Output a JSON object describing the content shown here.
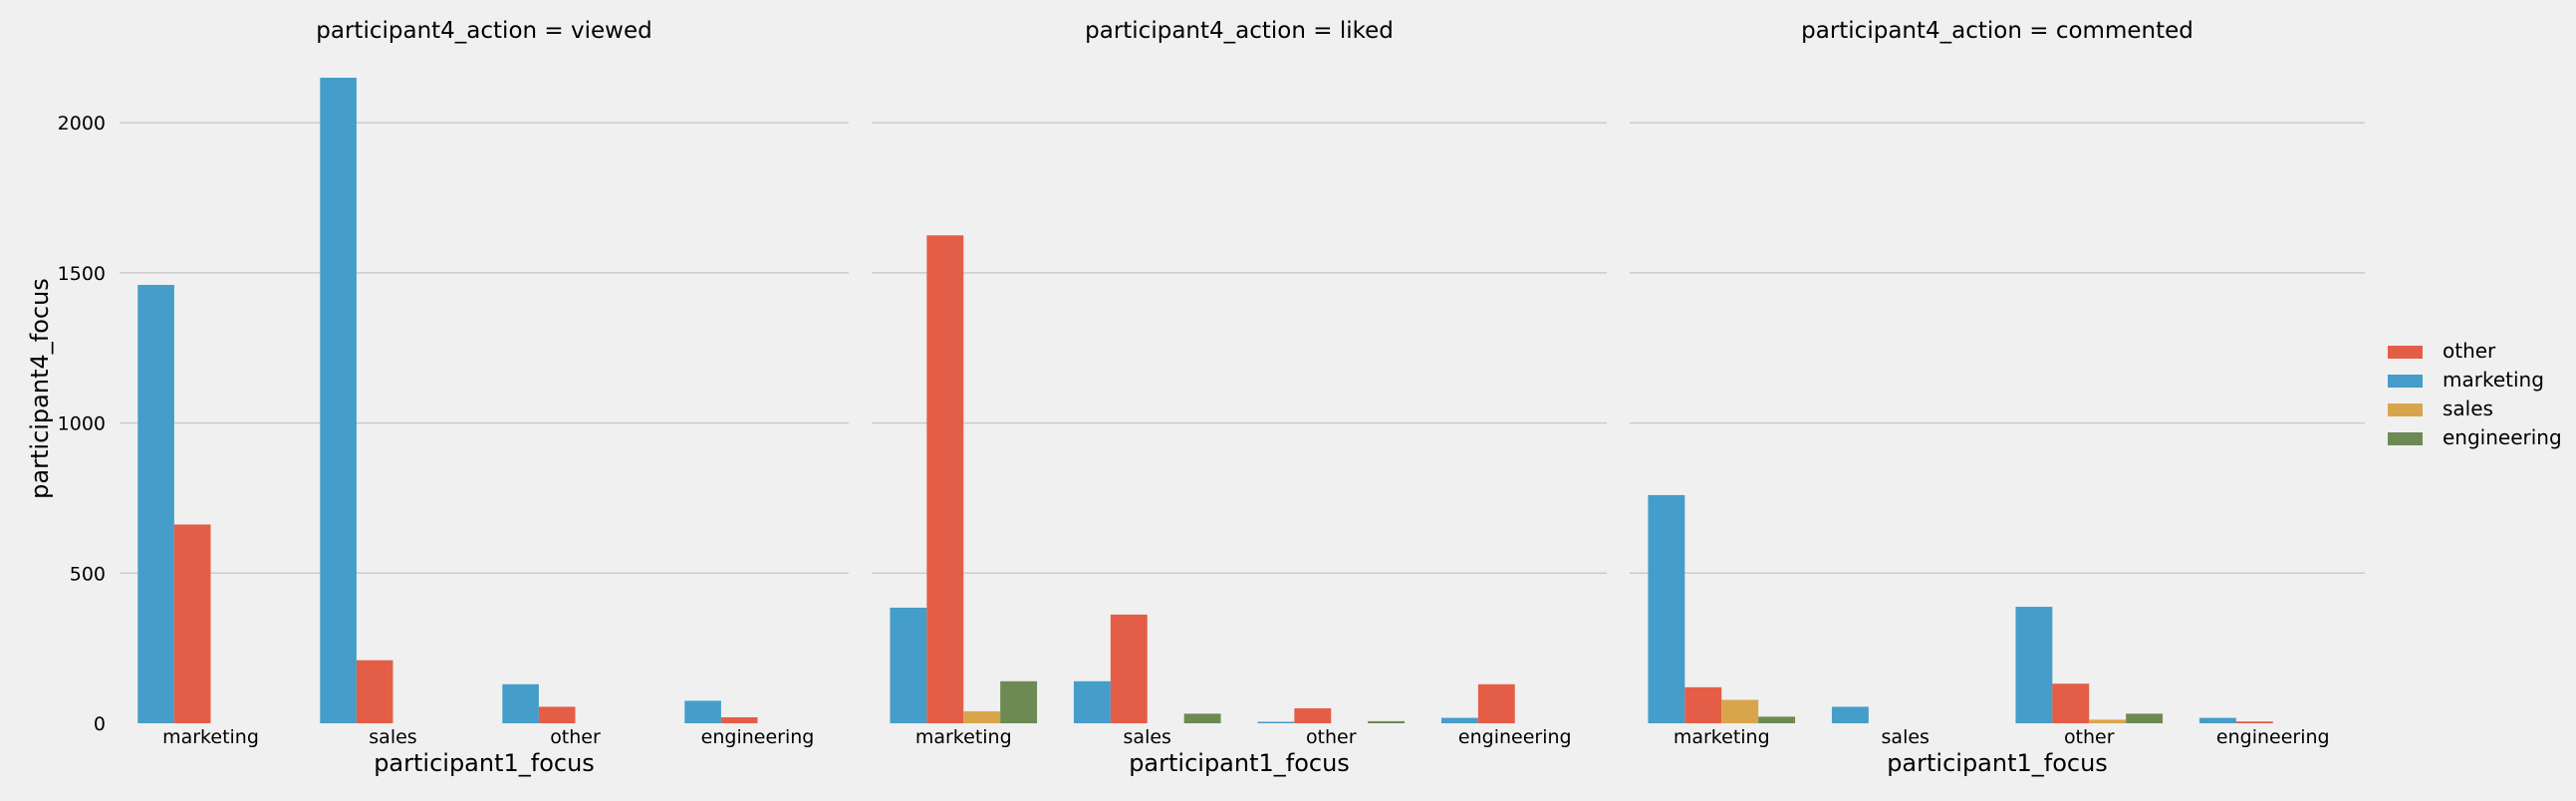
{
  "chart_data": {
    "type": "bar",
    "facet_variable": "participant4_action",
    "hue_variable": "participant4_focus",
    "xlabel": "participant1_focus",
    "ylabel": "participant4_focus",
    "categories": [
      "marketing",
      "sales",
      "other",
      "engineering"
    ],
    "ylim": [
      0,
      2150
    ],
    "yticks": [
      0,
      500,
      1000,
      1500,
      2000
    ],
    "grid": true,
    "legend_placement": "right",
    "legend": [
      "other",
      "marketing",
      "sales",
      "engineering"
    ],
    "colors": {
      "marketing": "#459dc9",
      "other": "#e45e47",
      "sales": "#d9a54a",
      "engineering": "#6d8a55",
      "background": "#f0f0f0",
      "grid": "#cbcbcb"
    },
    "panels": [
      {
        "title": "participant4_action = viewed",
        "series": [
          {
            "name": "marketing",
            "values": [
              1460,
              2150,
              130,
              75
            ]
          },
          {
            "name": "other",
            "values": [
              662,
              210,
              55,
              20
            ]
          }
        ]
      },
      {
        "title": "participant4_action = liked",
        "series": [
          {
            "name": "marketing",
            "values": [
              385,
              140,
              5,
              18
            ]
          },
          {
            "name": "other",
            "values": [
              1625,
              362,
              50,
              130
            ]
          },
          {
            "name": "sales",
            "values": [
              40,
              0,
              0,
              0
            ]
          },
          {
            "name": "engineering",
            "values": [
              140,
              32,
              7,
              0
            ]
          }
        ]
      },
      {
        "title": "participant4_action = commented",
        "series": [
          {
            "name": "marketing",
            "values": [
              760,
              55,
              388,
              18
            ]
          },
          {
            "name": "other",
            "values": [
              120,
              0,
              132,
              6
            ]
          },
          {
            "name": "sales",
            "values": [
              78,
              0,
              12,
              0
            ]
          },
          {
            "name": "engineering",
            "values": [
              22,
              0,
              32,
              0
            ]
          }
        ]
      }
    ]
  }
}
